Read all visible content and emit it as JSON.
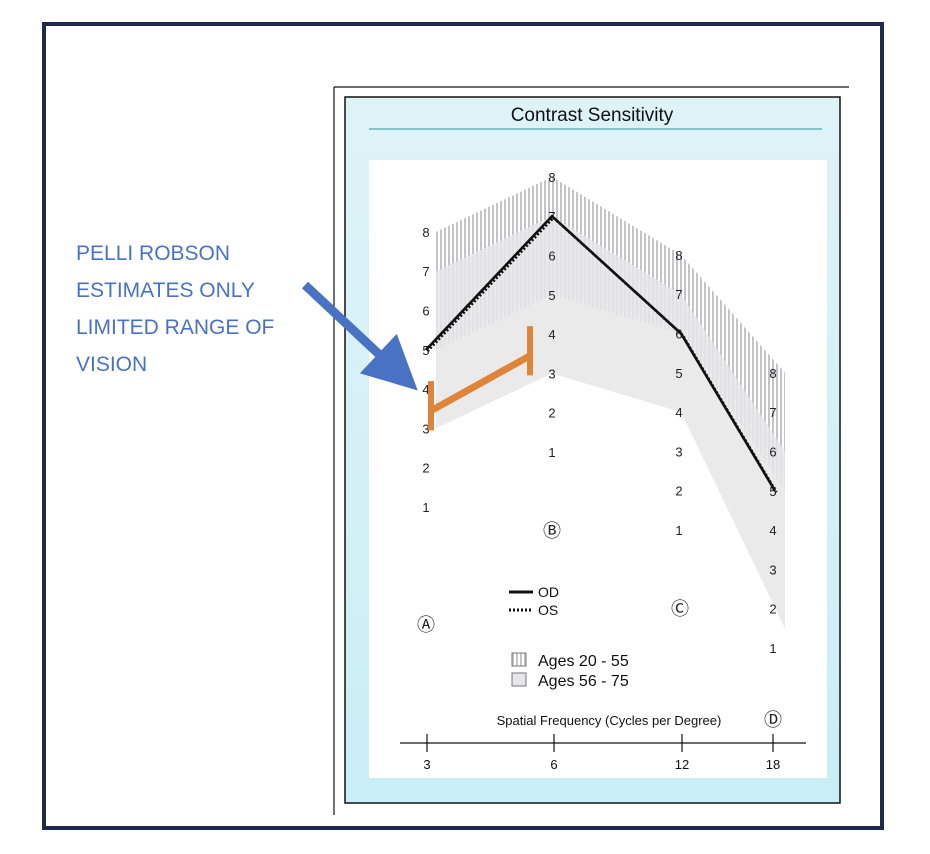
{
  "annotation": {
    "lines": [
      "PELLI ROBSON",
      "ESTIMATES ONLY",
      "LIMITED RANGE OF",
      "VISION"
    ]
  },
  "colors": {
    "frame": "#1f2a4a",
    "annotation_text": "#4a72c4",
    "arrow": "#4a72c4",
    "panel_gradient_top": "#dff3f7",
    "panel_gradient_bottom": "#c9eef6",
    "title_rule": "#4fa9b1",
    "band_light": "#e6e6e8",
    "hatch": "#c4c4c6",
    "orange_bar": "#e0843a",
    "line": "#111111"
  },
  "chart_data": {
    "type": "line",
    "title": "Contrast Sensitivity",
    "xlabel": "Spatial Frequency (Cycles per Degree)",
    "categories": [
      "3",
      "6",
      "12",
      "18"
    ],
    "column_letters": [
      "Ⓐ",
      "Ⓑ",
      "Ⓒ",
      "Ⓓ"
    ],
    "column_scales": [
      [
        "8",
        "7",
        "6",
        "5",
        "4",
        "3",
        "2",
        "1"
      ],
      [
        "8",
        "7",
        "6",
        "5",
        "4",
        "3",
        "2",
        "1"
      ],
      [
        "8",
        "7",
        "6",
        "5",
        "4",
        "3",
        "2",
        "1"
      ],
      [
        "8",
        "7",
        "6",
        "5",
        "4",
        "3",
        "2",
        "1"
      ]
    ],
    "series": [
      {
        "name": "OD",
        "style": "solid",
        "values": [
          5,
          7,
          6,
          5
        ]
      },
      {
        "name": "OS",
        "style": "dotted",
        "values": [
          5,
          7,
          6,
          5
        ]
      }
    ],
    "bands": [
      {
        "name": "Ages 20 - 55",
        "pattern": "hatched",
        "low": [
          5,
          5,
          6,
          5
        ],
        "high": [
          8,
          8,
          8,
          8
        ]
      },
      {
        "name": "Ages 56 - 75",
        "pattern": "solid",
        "low": [
          3,
          3,
          4,
          1.5
        ],
        "high": [
          7,
          7,
          7,
          6
        ]
      }
    ],
    "pelli_robson_range": {
      "x": [
        "3",
        "6"
      ],
      "low": [
        3,
        3
      ],
      "high": [
        4,
        4
      ],
      "values": [
        3.5,
        3.5
      ]
    },
    "legend": {
      "lines": [
        "OD",
        "OS"
      ],
      "bands": [
        "Ages 20 - 55",
        "Ages 56 - 75"
      ]
    },
    "grid": false
  }
}
